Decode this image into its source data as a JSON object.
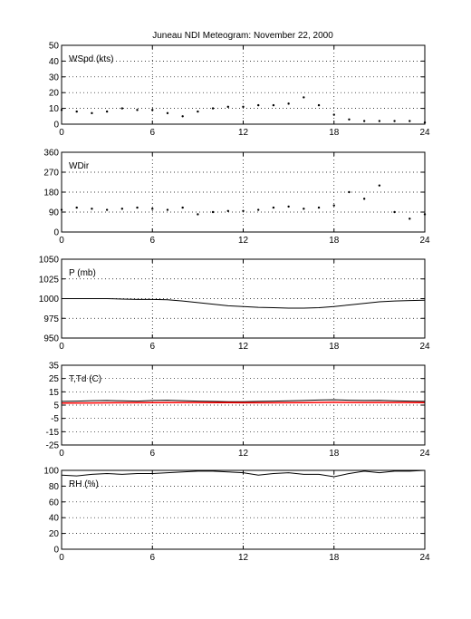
{
  "figure": {
    "title": "Juneau NDI Meteogram:  November 22, 2000"
  },
  "colors": {
    "background": "#ffffff",
    "axis": "#000000",
    "trace": "#000000",
    "dewpoint": "#ff0000"
  },
  "chart_data": [
    {
      "id": "wspd",
      "type": "scatter",
      "title": "WSpd (kts)",
      "xlim": [
        0,
        24
      ],
      "ylim": [
        0,
        50
      ],
      "xticks": [
        0,
        6,
        12,
        18,
        24
      ],
      "yticks": [
        0,
        10,
        20,
        30,
        40,
        50
      ],
      "grid": true,
      "series": [
        {
          "x": [
            0,
            1,
            2,
            3,
            4,
            5,
            6,
            7,
            8,
            9,
            10,
            11,
            12,
            13,
            14,
            15,
            16,
            17,
            18,
            19,
            20,
            21,
            22,
            23,
            24
          ],
          "y": [
            9,
            8,
            7,
            8,
            10,
            9,
            9,
            7,
            5,
            8,
            10,
            11,
            11,
            12,
            12,
            13,
            17,
            12,
            6,
            3,
            2,
            2,
            2,
            2,
            1
          ]
        }
      ]
    },
    {
      "id": "wdir",
      "type": "scatter",
      "title": "WDir",
      "xlim": [
        0,
        24
      ],
      "ylim": [
        0,
        360
      ],
      "xticks": [
        0,
        6,
        12,
        18,
        24
      ],
      "yticks": [
        0,
        90,
        180,
        270,
        360
      ],
      "grid": true,
      "series": [
        {
          "x": [
            0,
            1,
            2,
            3,
            4,
            5,
            6,
            7,
            8,
            9,
            10,
            11,
            12,
            13,
            14,
            15,
            16,
            17,
            18,
            19,
            20,
            21,
            22,
            23,
            24
          ],
          "y": [
            100,
            110,
            105,
            100,
            105,
            110,
            105,
            100,
            110,
            80,
            90,
            95,
            95,
            100,
            110,
            115,
            105,
            110,
            120,
            180,
            150,
            210,
            90,
            60,
            80
          ]
        }
      ]
    },
    {
      "id": "pressure",
      "type": "line",
      "title": "P (mb)",
      "xlim": [
        0,
        24
      ],
      "ylim": [
        950,
        1050
      ],
      "xticks": [
        0,
        6,
        12,
        18,
        24
      ],
      "yticks": [
        950,
        975,
        1000,
        1025,
        1050
      ],
      "grid": true,
      "series": [
        {
          "x": [
            0,
            1,
            2,
            3,
            4,
            5,
            6,
            7,
            8,
            9,
            10,
            11,
            12,
            13,
            14,
            15,
            16,
            17,
            18,
            19,
            20,
            21,
            22,
            23,
            24
          ],
          "y": [
            1000,
            1000,
            1000,
            1000,
            999.5,
            999,
            999,
            998.5,
            997,
            995,
            993,
            991,
            990,
            989,
            988.5,
            988,
            988,
            988.5,
            990,
            992,
            994,
            996,
            997,
            997.5,
            998
          ]
        }
      ]
    },
    {
      "id": "temp",
      "type": "line",
      "title": "T,Td (C)",
      "xlim": [
        0,
        24
      ],
      "ylim": [
        -25,
        35
      ],
      "xticks": [
        0,
        6,
        12,
        18,
        24
      ],
      "yticks": [
        -25,
        -15,
        -5,
        5,
        15,
        25,
        35
      ],
      "grid": true,
      "series": [
        {
          "x": [
            0,
            1,
            2,
            3,
            4,
            5,
            6,
            7,
            8,
            9,
            10,
            11,
            12,
            13,
            14,
            15,
            16,
            17,
            18,
            19,
            20,
            21,
            22,
            23,
            24
          ],
          "y": [
            7.8,
            8.0,
            8.3,
            8.5,
            8.2,
            8.0,
            8.5,
            8.7,
            8.3,
            8.0,
            7.8,
            7.6,
            7.6,
            7.8,
            8.0,
            8.2,
            8.5,
            8.8,
            9.0,
            8.7,
            8.5,
            8.6,
            8.2,
            8.0,
            7.8
          ]
        },
        {
          "x": [
            0,
            2,
            4,
            6,
            8,
            10,
            12,
            14,
            16,
            18,
            20,
            22,
            24
          ],
          "y": [
            6.5,
            6.6,
            6.8,
            6.9,
            7.0,
            6.9,
            6.8,
            6.8,
            6.9,
            7.1,
            7.0,
            7.0,
            6.9
          ]
        }
      ]
    },
    {
      "id": "rh",
      "type": "line",
      "title": "RH (%)",
      "xlim": [
        0,
        24
      ],
      "ylim": [
        0,
        100
      ],
      "xticks": [
        0,
        6,
        12,
        18,
        24
      ],
      "yticks": [
        0,
        20,
        40,
        60,
        80,
        100
      ],
      "grid": true,
      "series": [
        {
          "x": [
            0,
            1,
            2,
            3,
            4,
            5,
            6,
            7,
            8,
            9,
            10,
            11,
            12,
            13,
            14,
            15,
            16,
            17,
            18,
            19,
            20,
            21,
            22,
            23,
            24
          ],
          "y": [
            94,
            93,
            95,
            96,
            95,
            96,
            96,
            97,
            98,
            99,
            99,
            98,
            97,
            94,
            96,
            97,
            95,
            95,
            92,
            96,
            99,
            97,
            99,
            99,
            100
          ]
        }
      ]
    }
  ]
}
